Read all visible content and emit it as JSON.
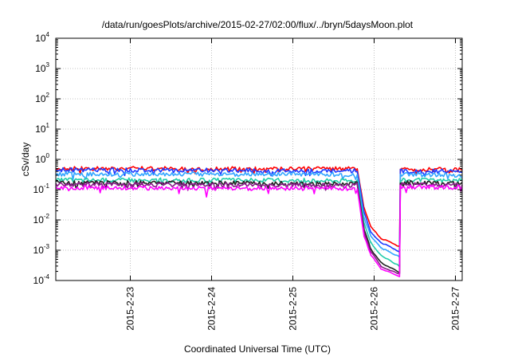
{
  "chart_data": {
    "type": "line",
    "title": "/data/run/goesPlots/archive/2015-02-27/02:00/flux/../bryn/5daysMoon.plot",
    "xlabel": "Coordinated Universal Time (UTC)",
    "ylabel": "cSv/day",
    "yscale": "log",
    "ylim": [
      0.0001,
      10000
    ],
    "xlim": [
      "2015-02-22T02:00",
      "2015-02-27T02:00"
    ],
    "grid": true,
    "legend": "none",
    "y_ticks": [
      {
        "base": "10",
        "exp": "-4",
        "value": 0.0001
      },
      {
        "base": "10",
        "exp": "-3",
        "value": 0.001
      },
      {
        "base": "10",
        "exp": "-2",
        "value": 0.01
      },
      {
        "base": "10",
        "exp": "-1",
        "value": 0.1
      },
      {
        "base": "10",
        "exp": "0",
        "value": 1
      },
      {
        "base": "10",
        "exp": "1",
        "value": 10
      },
      {
        "base": "10",
        "exp": "2",
        "value": 100
      },
      {
        "base": "10",
        "exp": "3",
        "value": 1000
      },
      {
        "base": "10",
        "exp": "4",
        "value": 10000
      }
    ],
    "x_ticks": [
      {
        "label": "2015-2-23",
        "value": "2015-02-23T00:00"
      },
      {
        "label": "2015-2-24",
        "value": "2015-02-24T00:00"
      },
      {
        "label": "2015-2-25",
        "value": "2015-02-25T00:00"
      },
      {
        "label": "2015-2-26",
        "value": "2015-02-26T00:00"
      },
      {
        "label": "2015-2-27",
        "value": "2015-02-27T00:00"
      }
    ],
    "series": [
      {
        "color": "#ff0000",
        "points": [
          [
            "2015-02-22T02:00",
            0.5
          ],
          [
            "2015-02-25T19:00",
            0.48
          ],
          [
            "2015-02-25T21:00",
            0.025
          ],
          [
            "2015-02-25T23:00",
            0.006
          ],
          [
            "2015-02-26T02:00",
            0.0025
          ],
          [
            "2015-02-26T07:30",
            0.0013
          ],
          [
            "2015-02-26T07:45",
            0.48
          ],
          [
            "2015-02-27T02:00",
            0.45
          ]
        ]
      },
      {
        "color": "#1e3cff",
        "points": [
          [
            "2015-02-22T02:00",
            0.45
          ],
          [
            "2015-02-25T19:00",
            0.42
          ],
          [
            "2015-02-25T21:00",
            0.018
          ],
          [
            "2015-02-25T23:00",
            0.004
          ],
          [
            "2015-02-26T02:00",
            0.0018
          ],
          [
            "2015-02-26T07:30",
            0.0009
          ],
          [
            "2015-02-26T07:45",
            0.42
          ],
          [
            "2015-02-27T02:00",
            0.4
          ]
        ]
      },
      {
        "color": "#33a6ff",
        "points": [
          [
            "2015-02-22T02:00",
            0.33
          ],
          [
            "2015-02-25T19:00",
            0.32
          ],
          [
            "2015-02-25T21:00",
            0.012
          ],
          [
            "2015-02-25T23:00",
            0.003
          ],
          [
            "2015-02-26T02:00",
            0.0012
          ],
          [
            "2015-02-26T07:30",
            0.0006
          ],
          [
            "2015-02-26T07:45",
            0.32
          ],
          [
            "2015-02-27T02:00",
            0.3
          ]
        ]
      },
      {
        "color": "#22ccaa",
        "points": [
          [
            "2015-02-22T02:00",
            0.21
          ],
          [
            "2015-02-25T19:00",
            0.2
          ],
          [
            "2015-02-25T21:00",
            0.008
          ],
          [
            "2015-02-25T23:00",
            0.0018
          ],
          [
            "2015-02-26T02:00",
            0.0007
          ],
          [
            "2015-02-26T07:30",
            0.0003
          ],
          [
            "2015-02-26T07:45",
            0.21
          ],
          [
            "2015-02-27T02:00",
            0.2
          ]
        ]
      },
      {
        "color": "#222222",
        "points": [
          [
            "2015-02-22T02:00",
            0.17
          ],
          [
            "2015-02-25T19:00",
            0.16
          ],
          [
            "2015-02-25T21:00",
            0.005
          ],
          [
            "2015-02-25T23:00",
            0.0011
          ],
          [
            "2015-02-26T02:00",
            0.0004
          ],
          [
            "2015-02-26T07:30",
            0.00018
          ],
          [
            "2015-02-26T07:45",
            0.17
          ],
          [
            "2015-02-27T02:00",
            0.16
          ]
        ]
      },
      {
        "color": "#8a1a8a",
        "points": [
          [
            "2015-02-22T02:00",
            0.15
          ],
          [
            "2015-02-25T19:00",
            0.14
          ],
          [
            "2015-02-25T21:00",
            0.004
          ],
          [
            "2015-02-25T23:00",
            0.0009
          ],
          [
            "2015-02-26T02:00",
            0.0003
          ],
          [
            "2015-02-26T07:30",
            0.00016
          ],
          [
            "2015-02-26T07:45",
            0.15
          ],
          [
            "2015-02-27T02:00",
            0.14
          ]
        ]
      },
      {
        "color": "#ff00ff",
        "points": [
          [
            "2015-02-22T02:00",
            0.12
          ],
          [
            "2015-02-23T22:00",
            0.11
          ],
          [
            "2015-02-23T22:30",
            0.055
          ],
          [
            "2015-02-23T23:00",
            0.11
          ],
          [
            "2015-02-25T19:00",
            0.11
          ],
          [
            "2015-02-25T21:00",
            0.003
          ],
          [
            "2015-02-25T23:00",
            0.0007
          ],
          [
            "2015-02-26T02:00",
            0.00025
          ],
          [
            "2015-02-26T07:30",
            0.00014
          ],
          [
            "2015-02-26T07:45",
            0.12
          ],
          [
            "2015-02-27T02:00",
            0.12
          ]
        ]
      }
    ]
  }
}
